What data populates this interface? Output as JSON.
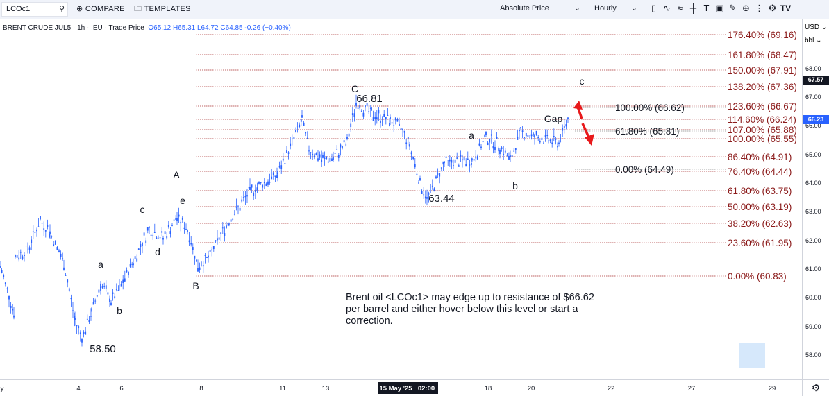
{
  "toolbar": {
    "symbol": "LCOc1",
    "compare_label": "COMPARE",
    "templates_label": "TEMPLATES",
    "price_type": "Absolute Price",
    "interval": "Hourly",
    "icons": [
      "candles-icon",
      "indicators-icon",
      "waves-icon",
      "crosshair-icon",
      "text-tool-icon",
      "fullscreen-icon",
      "annotate-icon",
      "zoom-icon",
      "more-icon",
      "settings-icon",
      "tradingview-logo-icon"
    ]
  },
  "header": {
    "symbol_line": "BRENT CRUDE JUL5",
    "interval": "1h",
    "exchange": "IEU",
    "mode": "Trade Price",
    "open": "O65.12",
    "high": "H65.31",
    "low": "L64.72",
    "close": "C64.85",
    "change": "-0.26 (−0.40%)"
  },
  "axis": {
    "currency": "USD",
    "unit": "bbl",
    "y_ticks": [
      "68.00",
      "67.00",
      "66.00",
      "65.00",
      "64.00",
      "63.00",
      "62.00",
      "61.00",
      "60.00",
      "59.00",
      "58.00"
    ],
    "last_price": "67.57",
    "current_price": "66.23",
    "x_ticks": [
      "y",
      "4",
      "6",
      "8",
      "11",
      "13",
      "15 May '25",
      "02:00",
      "18",
      "20",
      "22",
      "27",
      "29"
    ]
  },
  "fib_levels_red": [
    "176.40% (69.16)",
    "161.80% (68.47)",
    "150.00% (67.91)",
    "138.20% (67.36)",
    "123.60% (66.67)",
    "114.60% (66.24)",
    "107.00% (65.88)",
    "100.00% (65.55)",
    "86.40% (64.91)",
    "76.40% (64.44)",
    "61.80% (63.75)",
    "50.00% (63.19)",
    "38.20% (62.63)",
    "23.60% (61.95)",
    "0.00% (60.83)"
  ],
  "fib_levels_black": [
    "100.00% (66.62)",
    "61.80% (65.81)",
    "0.00% (64.49)"
  ],
  "wave_labels": {
    "a1": "a",
    "b1": "b",
    "c1": "c",
    "d1": "d",
    "e1": "e",
    "A": "A",
    "B": "B",
    "C": "C",
    "a2": "a",
    "b2": "b",
    "c2": "c",
    "gap": "Gap"
  },
  "price_labels": {
    "low1": "58.50",
    "high1": "66.81",
    "low2": "63.44"
  },
  "caption": "Brent oil <LCOc1> may edge up to resistance of $66.62 per barrel and either hover below this level or start a correction.",
  "colors": {
    "candle": "#2962ff",
    "fib_red": "#8b1a1a",
    "arrow": "#e8191b",
    "axis": "#131722"
  },
  "chart_data": {
    "type": "line",
    "note": "approximate price path",
    "x": [
      0,
      20,
      22,
      40,
      58,
      72,
      92,
      108,
      118,
      132,
      145,
      160,
      172,
      192,
      215,
      235,
      255,
      270,
      285,
      300,
      330,
      360,
      400,
      435,
      445,
      465,
      480,
      500,
      513,
      535,
      562,
      580,
      590,
      605,
      615,
      640,
      680,
      700,
      720,
      735,
      750,
      770,
      790,
      805,
      820
    ],
    "y": [
      61.1,
      59.5,
      61.4,
      61.7,
      62.7,
      62.3,
      61.2,
      59.2,
      58.6,
      59.5,
      60.5,
      59.9,
      60.3,
      61.3,
      62.4,
      62.1,
      62.8,
      62.4,
      61.1,
      61.4,
      62.7,
      63.7,
      64.3,
      66.2,
      65.2,
      64.8,
      64.9,
      65.4,
      66.81,
      66.4,
      66.2,
      65.8,
      65.3,
      64.0,
      63.44,
      64.7,
      64.8,
      65.6,
      65.3,
      64.8,
      65.8,
      65.6,
      65.5,
      65.4,
      66.4
    ]
  }
}
